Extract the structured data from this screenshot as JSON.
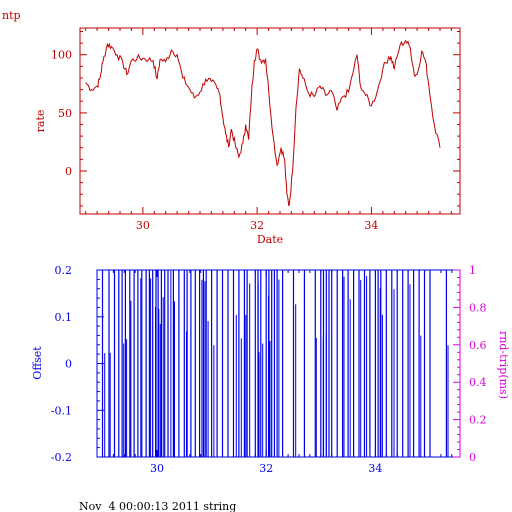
{
  "corner_label": "ntp",
  "footer_text": "Nov  4 00:00:13 2011 string",
  "colors": {
    "top": "#c00000",
    "bottom_left": "#0000ee",
    "bottom_right": "#dd00dd",
    "frame": "#000000"
  },
  "chart_data": [
    {
      "type": "line",
      "xlabel": "Date",
      "ylabel": "rate",
      "xlim": [
        28.9,
        35.55
      ],
      "ylim": [
        -37,
        123
      ],
      "x_ticks": [
        30,
        32,
        34
      ],
      "x_tick_labels": [
        "30",
        "32",
        "34"
      ],
      "y_ticks": [
        0,
        50,
        100
      ],
      "y_tick_labels": [
        "0",
        "50",
        "100"
      ],
      "series": [
        {
          "points": [
            [
              29.0,
              76
            ],
            [
              29.1,
              70
            ],
            [
              29.2,
              73
            ],
            [
              29.25,
              80
            ],
            [
              29.3,
              94
            ],
            [
              29.38,
              109
            ],
            [
              29.45,
              107
            ],
            [
              29.55,
              100
            ],
            [
              29.65,
              93
            ],
            [
              29.72,
              83
            ],
            [
              29.8,
              95
            ],
            [
              29.9,
              97
            ],
            [
              30.0,
              97
            ],
            [
              30.1,
              96
            ],
            [
              30.18,
              95
            ],
            [
              30.25,
              79
            ],
            [
              30.3,
              96
            ],
            [
              30.4,
              94
            ],
            [
              30.5,
              104
            ],
            [
              30.6,
              100
            ],
            [
              30.7,
              80
            ],
            [
              30.8,
              72
            ],
            [
              30.9,
              63
            ],
            [
              31.0,
              68
            ],
            [
              31.1,
              79
            ],
            [
              31.2,
              77
            ],
            [
              31.3,
              71
            ],
            [
              31.35,
              65
            ],
            [
              31.4,
              46
            ],
            [
              31.45,
              32
            ],
            [
              31.5,
              21
            ],
            [
              31.55,
              36
            ],
            [
              31.62,
              22
            ],
            [
              31.68,
              12
            ],
            [
              31.75,
              24
            ],
            [
              31.8,
              40
            ],
            [
              31.85,
              27
            ],
            [
              31.9,
              65
            ],
            [
              31.95,
              95
            ],
            [
              32.0,
              105
            ],
            [
              32.05,
              96
            ],
            [
              32.1,
              95
            ],
            [
              32.15,
              96
            ],
            [
              32.2,
              70
            ],
            [
              32.28,
              30
            ],
            [
              32.35,
              5
            ],
            [
              32.42,
              20
            ],
            [
              32.48,
              10
            ],
            [
              32.52,
              -20
            ],
            [
              32.56,
              -30
            ],
            [
              32.62,
              0
            ],
            [
              32.68,
              55
            ],
            [
              32.74,
              88
            ],
            [
              32.8,
              80
            ],
            [
              32.9,
              67
            ],
            [
              33.0,
              64
            ],
            [
              33.1,
              73
            ],
            [
              33.2,
              65
            ],
            [
              33.3,
              69
            ],
            [
              33.4,
              52
            ],
            [
              33.5,
              64
            ],
            [
              33.6,
              68
            ],
            [
              33.7,
              90
            ],
            [
              33.75,
              100
            ],
            [
              33.8,
              75
            ],
            [
              33.9,
              65
            ],
            [
              34.0,
              56
            ],
            [
              34.1,
              68
            ],
            [
              34.2,
              88
            ],
            [
              34.3,
              98
            ],
            [
              34.35,
              97
            ],
            [
              34.4,
              88
            ],
            [
              34.5,
              108
            ],
            [
              34.6,
              112
            ],
            [
              34.68,
              106
            ],
            [
              34.75,
              83
            ],
            [
              34.8,
              83
            ],
            [
              34.88,
              103
            ],
            [
              34.95,
              94
            ],
            [
              35.0,
              75
            ],
            [
              35.1,
              40
            ],
            [
              35.2,
              20
            ]
          ]
        }
      ]
    },
    {
      "type": "bar",
      "ylabel": "Offset",
      "y2label": "rnd-trip(ms)",
      "xlim": [
        28.9,
        35.55
      ],
      "ylim": [
        -0.2,
        0.2
      ],
      "y2lim": [
        0,
        1
      ],
      "x_ticks": [
        30,
        32,
        34
      ],
      "x_tick_labels": [
        "30",
        "32",
        "34"
      ],
      "y_ticks": [
        -0.2,
        -0.1,
        0,
        0.1,
        0.2
      ],
      "y_tick_labels": [
        "-0.2",
        "-0.1",
        "0",
        "0.1",
        "0.2"
      ],
      "y2_ticks": [
        0,
        0.2,
        0.4,
        0.6,
        0.8,
        1
      ],
      "y2_tick_labels": [
        "0",
        "0.2",
        "0.4",
        "0.6",
        "0.8",
        "1"
      ],
      "spikes": [
        29.0,
        29.12,
        29.22,
        29.3,
        29.36,
        29.42,
        29.5,
        29.58,
        29.65,
        29.72,
        29.8,
        29.86,
        29.92,
        29.98,
        30.02,
        30.08,
        30.14,
        30.2,
        30.3,
        30.4,
        30.5,
        30.55,
        30.62,
        30.7,
        30.78,
        30.85,
        30.9,
        31.0,
        31.1,
        31.2,
        31.3,
        31.4,
        31.5,
        31.6,
        31.65,
        31.8,
        31.85,
        31.9,
        32.0,
        32.05,
        32.1,
        32.15,
        32.2,
        32.3,
        32.5,
        32.7,
        32.9,
        33.0,
        33.05,
        33.1,
        33.15,
        33.2,
        33.3,
        33.4,
        33.5,
        33.6,
        33.7,
        33.8,
        33.9,
        34.0,
        34.05,
        34.1,
        34.2,
        34.3,
        34.4,
        34.5,
        34.6,
        34.7,
        34.8,
        34.9,
        35.0,
        35.3
      ]
    }
  ]
}
